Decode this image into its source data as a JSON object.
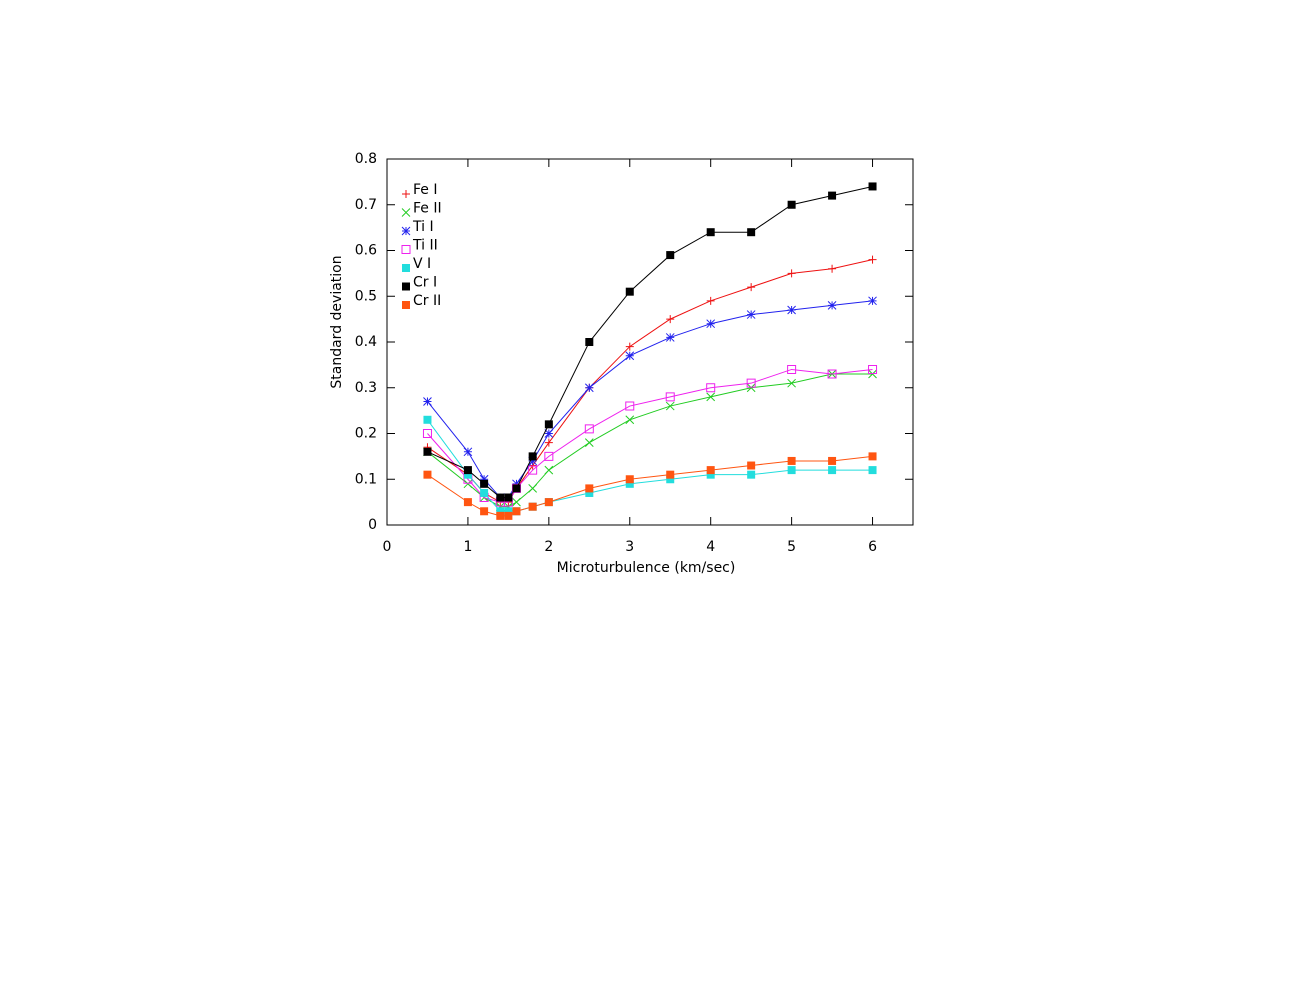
{
  "chart_data": {
    "type": "line",
    "x_label": "Microturbulence (km/sec)",
    "y_label": "Standard deviation",
    "x": [
      0.5,
      1.0,
      1.2,
      1.4,
      1.5,
      1.6,
      1.8,
      2.0,
      2.5,
      3.0,
      3.5,
      4.0,
      4.5,
      5.0,
      5.5,
      6.0
    ],
    "xlim": [
      0,
      6.5
    ],
    "xticks": [
      0,
      1,
      2,
      3,
      4,
      5,
      6
    ],
    "ylim": [
      0,
      0.8
    ],
    "yticks": [
      0,
      0.1,
      0.2,
      0.3,
      0.4,
      0.5,
      0.6,
      0.7,
      0.8
    ],
    "legend": "upper left",
    "series": [
      {
        "name": "Fe I",
        "color": "#ee1111",
        "marker": "plus",
        "values": [
          0.17,
          0.11,
          0.07,
          0.05,
          0.05,
          0.08,
          0.13,
          0.18,
          0.3,
          0.39,
          0.45,
          0.49,
          0.52,
          0.55,
          0.56,
          0.58
        ]
      },
      {
        "name": "Fe II",
        "color": "#22cc22",
        "marker": "cross",
        "values": [
          0.16,
          0.09,
          0.06,
          0.04,
          0.04,
          0.05,
          0.08,
          0.12,
          0.18,
          0.23,
          0.26,
          0.28,
          0.3,
          0.31,
          0.33,
          0.33
        ]
      },
      {
        "name": "Ti I",
        "color": "#2222ee",
        "marker": "star",
        "values": [
          0.27,
          0.16,
          0.1,
          0.06,
          0.06,
          0.09,
          0.14,
          0.2,
          0.3,
          0.37,
          0.41,
          0.44,
          0.46,
          0.47,
          0.48,
          0.49
        ]
      },
      {
        "name": "Ti II",
        "color": "#ee22ee",
        "marker": "open-square",
        "values": [
          0.2,
          0.1,
          0.06,
          0.05,
          0.05,
          0.08,
          0.12,
          0.15,
          0.21,
          0.26,
          0.28,
          0.3,
          0.31,
          0.34,
          0.33,
          0.34
        ]
      },
      {
        "name": "V I",
        "color": "#22dddd",
        "marker": "square",
        "values": [
          0.23,
          0.11,
          0.07,
          0.03,
          0.03,
          0.03,
          0.04,
          0.05,
          0.07,
          0.09,
          0.1,
          0.11,
          0.11,
          0.12,
          0.12,
          0.12
        ]
      },
      {
        "name": "Cr I",
        "color": "#000000",
        "marker": "square",
        "values": [
          0.16,
          0.12,
          0.09,
          0.06,
          0.06,
          0.08,
          0.15,
          0.22,
          0.4,
          0.51,
          0.59,
          0.64,
          0.64,
          0.7,
          0.72,
          0.74
        ]
      },
      {
        "name": "Cr II",
        "color": "#ff5511",
        "marker": "square",
        "values": [
          0.11,
          0.05,
          0.03,
          0.02,
          0.02,
          0.03,
          0.04,
          0.05,
          0.08,
          0.1,
          0.11,
          0.12,
          0.13,
          0.14,
          0.14,
          0.15
        ]
      }
    ]
  }
}
